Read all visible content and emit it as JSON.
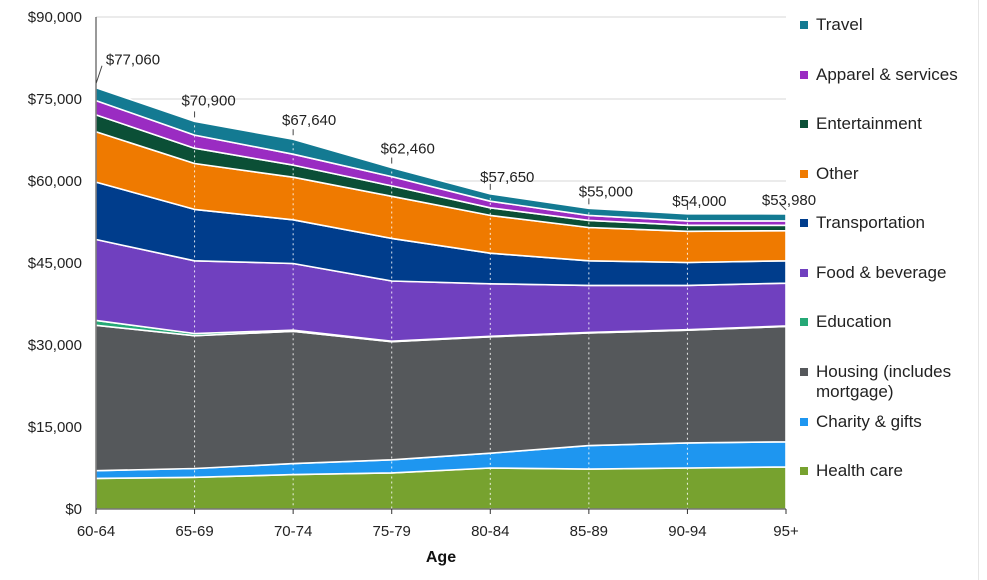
{
  "chart_data": {
    "type": "area",
    "stacked": true,
    "xlabel": "Age",
    "ylabel": "",
    "categories": [
      "60-64",
      "65-69",
      "70-74",
      "75-79",
      "80-84",
      "85-89",
      "90-94",
      "95+"
    ],
    "ylim": [
      0,
      90000
    ],
    "yticks": [
      0,
      15000,
      30000,
      45000,
      60000,
      75000,
      90000
    ],
    "ytick_labels": [
      "$0",
      "$15,000",
      "$30,000",
      "$45,000",
      "$60,000",
      "$75,000",
      "$90,000"
    ],
    "grid": "horizontal + vertical dotted",
    "legend_position": "right",
    "series": [
      {
        "name": "Health care",
        "color": "#77a22f",
        "values": [
          5600,
          5800,
          6300,
          6600,
          7500,
          7300,
          7500,
          7700
        ]
      },
      {
        "name": "Charity & gifts",
        "color": "#1e96f0",
        "values": [
          1400,
          1600,
          2000,
          2400,
          2700,
          4300,
          4600,
          4600
        ]
      },
      {
        "name": "Housing (includes mortgage)",
        "color": "#55585b",
        "values": [
          26600,
          24300,
          24200,
          21600,
          21300,
          20600,
          20600,
          21100
        ]
      },
      {
        "name": "Education",
        "color": "#25a876",
        "values": [
          900,
          400,
          200,
          100,
          100,
          100,
          100,
          100
        ]
      },
      {
        "name": "Food & beverage",
        "color": "#7040bf",
        "values": [
          14800,
          13300,
          12200,
          11000,
          9600,
          8600,
          8100,
          7800
        ]
      },
      {
        "name": "Transportation",
        "color": "#003d8c",
        "values": [
          10500,
          9400,
          8000,
          7800,
          5600,
          4500,
          4200,
          4100
        ]
      },
      {
        "name": "Other",
        "color": "#ef7a00",
        "values": [
          9200,
          8400,
          7800,
          7700,
          6900,
          6100,
          5700,
          5500
        ]
      },
      {
        "name": "Entertainment",
        "color": "#0b4f36",
        "values": [
          3100,
          2800,
          2200,
          1900,
          1400,
          1300,
          1100,
          1000
        ]
      },
      {
        "name": "Apparel & services",
        "color": "#9a2cc2",
        "values": [
          2600,
          2400,
          2000,
          1700,
          1200,
          900,
          800,
          800
        ]
      },
      {
        "name": "Travel",
        "color": "#137a92",
        "values": [
          2360,
          2500,
          2740,
          1660,
          1350,
          1300,
          1300,
          1280
        ]
      }
    ],
    "totals": [
      77060,
      70900,
      67640,
      62460,
      57650,
      55000,
      54000,
      53980
    ],
    "total_labels": [
      "$77,060",
      "$70,900",
      "$67,640",
      "$62,460",
      "$57,650",
      "$55,000",
      "$54,000",
      "$53,980"
    ]
  },
  "legend_order": [
    "Travel",
    "Apparel & services",
    "Entertainment",
    "Other",
    "Transportation",
    "Food & beverage",
    "Education",
    "Housing (includes\nmortgage)",
    "Charity & gifts",
    "Health care"
  ]
}
